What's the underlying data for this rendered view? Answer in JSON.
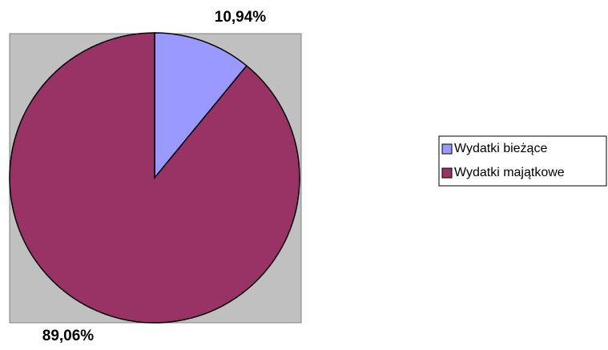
{
  "chart_data": {
    "type": "pie",
    "categories": [
      "Wydatki bieżące",
      "Wydatki majątkowe"
    ],
    "values": [
      10.94,
      89.06
    ],
    "value_labels": [
      "10,94%",
      "89,06%"
    ],
    "colors": [
      "#9999ff",
      "#993366"
    ],
    "legend": "right"
  }
}
